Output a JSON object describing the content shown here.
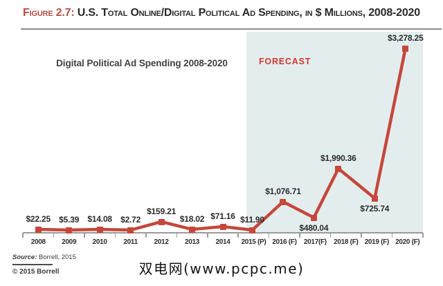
{
  "page": {
    "figure_label": "Figure 2.7:",
    "figure_title": "U.S. Total Online/Digital Political Ad Spending, in $ Millions, 2008-2020"
  },
  "chart_data": {
    "type": "line",
    "title": "Digital Political Ad Spending 2008-2020",
    "forecast_label": "FORECAST",
    "unit": "$ Millions",
    "categories": [
      "2008",
      "2009",
      "2010",
      "2011",
      "2012",
      "2013",
      "2014",
      "2015 (P)",
      "2016 (F)",
      "2017(F)",
      "2018 (F)",
      "2019 (F)",
      "2020 (F)"
    ],
    "values": [
      22.25,
      5.39,
      14.08,
      2.72,
      159.21,
      18.02,
      71.16,
      11.9,
      1076.71,
      480.04,
      1990.36,
      725.74,
      3278.25
    ],
    "value_labels": [
      "$22.25",
      "$5.39",
      "$14.08",
      "$2.72",
      "$159.21",
      "$18.02",
      "$71.16",
      "$11.90",
      "$1,076.71",
      "$480.04",
      "$1,990.36",
      "$725.74",
      "$3,278.25"
    ],
    "forecast_start_category": "2015 (P)",
    "grid": false,
    "legend_position": "none",
    "y_axis_shown": false
  },
  "footer": {
    "source_prefix": "Source:",
    "source_text": " Borrell, 2015",
    "copyright": "© 2015 Borrell",
    "watermark": "双电网(www.pcpc.me)"
  },
  "colors": {
    "accent_red": "#c5473b",
    "forecast_red": "#cf382d",
    "figure_label_red": "#b44c42",
    "forecast_bg": "#e4edee",
    "axis_gray": "#9a9a9a",
    "text_dark": "#29292b"
  }
}
